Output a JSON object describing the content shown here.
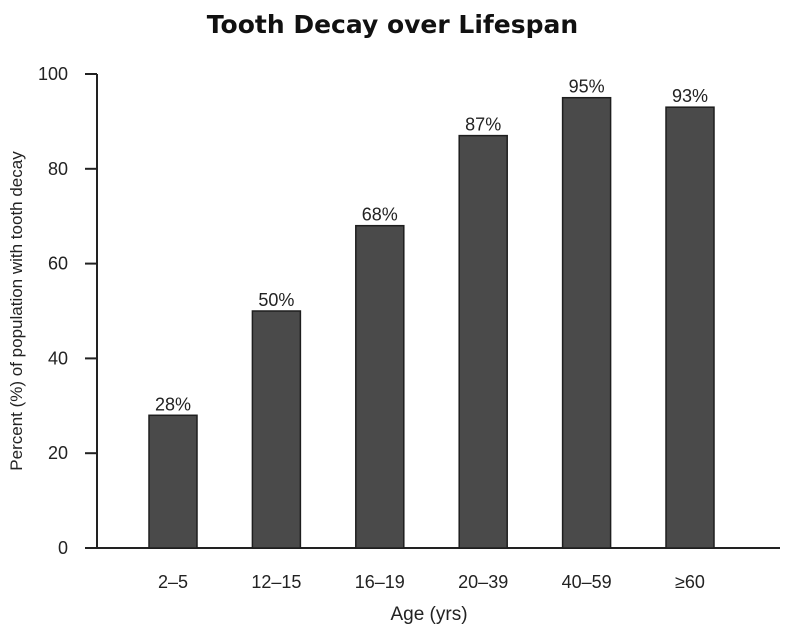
{
  "chart_data": {
    "type": "bar",
    "title": "Tooth Decay over Lifespan",
    "xlabel": "Age (yrs)",
    "ylabel": "Percent (%) of population with tooth decay",
    "categories": [
      "2–5",
      "12–15",
      "16–19",
      "20–39",
      "40–59",
      "≥60"
    ],
    "values": [
      28,
      50,
      68,
      87,
      95,
      93
    ],
    "data_labels": [
      "28%",
      "50%",
      "68%",
      "87%",
      "95%",
      "93%"
    ],
    "ylim": [
      0,
      100
    ],
    "yticks": [
      0,
      20,
      40,
      60,
      80,
      100
    ],
    "grid": false,
    "legend": "none",
    "bar_color": "#4a4a4a"
  }
}
